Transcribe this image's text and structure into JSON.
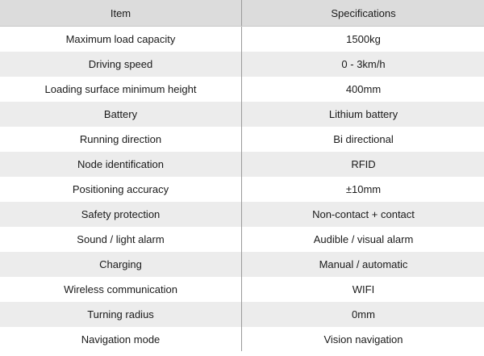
{
  "table": {
    "headers": {
      "item": "Item",
      "specifications": "Specifications"
    },
    "rows": [
      {
        "item": "Maximum load capacity",
        "spec": "1500kg"
      },
      {
        "item": "Driving speed",
        "spec": "0 - 3km/h"
      },
      {
        "item": "Loading surface minimum height",
        "spec": "400mm"
      },
      {
        "item": "Battery",
        "spec": "Lithium battery"
      },
      {
        "item": "Running direction",
        "spec": "Bi directional"
      },
      {
        "item": "Node identification",
        "spec": "RFID"
      },
      {
        "item": "Positioning accuracy",
        "spec": "±10mm"
      },
      {
        "item": "Safety protection",
        "spec": "Non-contact + contact"
      },
      {
        "item": "Sound / light alarm",
        "spec": "Audible / visual alarm"
      },
      {
        "item": "Charging",
        "spec": "Manual / automatic"
      },
      {
        "item": "Wireless communication",
        "spec": "WIFI"
      },
      {
        "item": "Turning radius",
        "spec": "0mm"
      },
      {
        "item": "Navigation mode",
        "spec": "Vision navigation"
      }
    ]
  }
}
